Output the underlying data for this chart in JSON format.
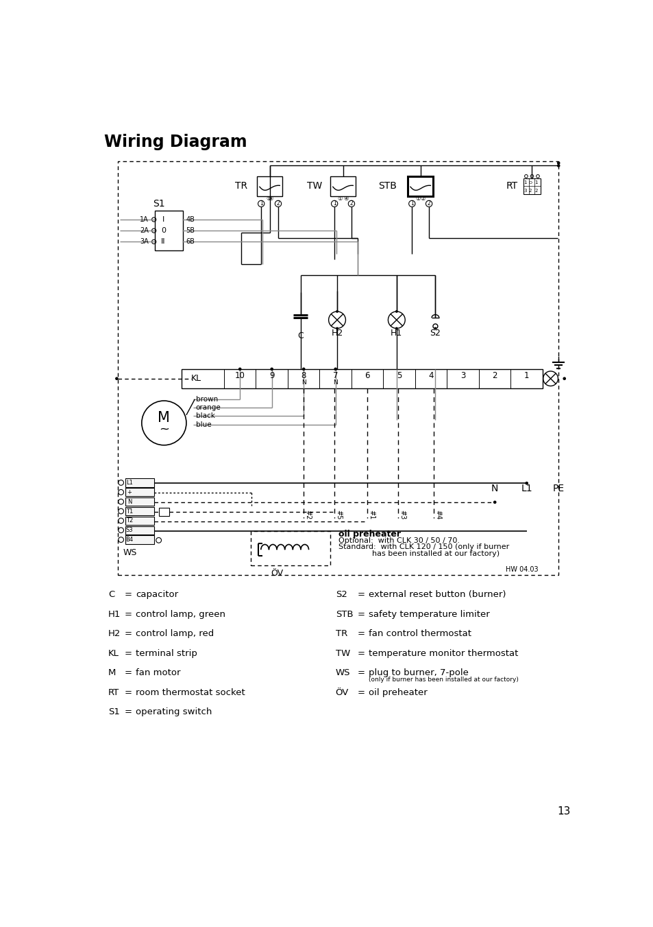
{
  "title": "Wiring Diagram",
  "page_num": "13",
  "bg": "#ffffff",
  "lc": "#000000",
  "gc": "#888888",
  "legend_left": [
    [
      "C",
      "=",
      "capacitor"
    ],
    [
      "H1",
      "=",
      "control lamp, green"
    ],
    [
      "H2",
      "=",
      "control lamp, red"
    ],
    [
      "KL",
      "=",
      "terminal strip"
    ],
    [
      "M",
      "=",
      "fan motor"
    ],
    [
      "RT",
      "=",
      "room thermostat socket"
    ],
    [
      "S1",
      "=",
      "operating switch"
    ]
  ],
  "legend_right": [
    [
      "S2",
      "=",
      "external reset button (burner)"
    ],
    [
      "STB",
      "=",
      "safety temperature limiter"
    ],
    [
      "TR",
      "=",
      "fan control thermostat"
    ],
    [
      "TW",
      "=",
      "temperature monitor thermostat"
    ],
    [
      "WS",
      "=",
      "plug to burner, 7-pole"
    ],
    [
      "ÖV",
      "=",
      "oil preheater"
    ]
  ],
  "ws_small": "(only if burner has been installed at our factory)",
  "oil_text1": "oil preheater",
  "oil_text2": "Optional:  with CLK 30 / 50 / 70.",
  "oil_text3": "Standard:  with CLK 120 / 150 (only if burner",
  "oil_text4": "              has been installed at our factory)",
  "hw": "HW 04.03",
  "terminals": [
    10,
    9,
    8,
    7,
    6,
    5,
    4,
    3,
    2,
    1
  ],
  "ws_labels": [
    "L1",
    "+",
    "N",
    "T1",
    "T2",
    "S3",
    "B4"
  ]
}
